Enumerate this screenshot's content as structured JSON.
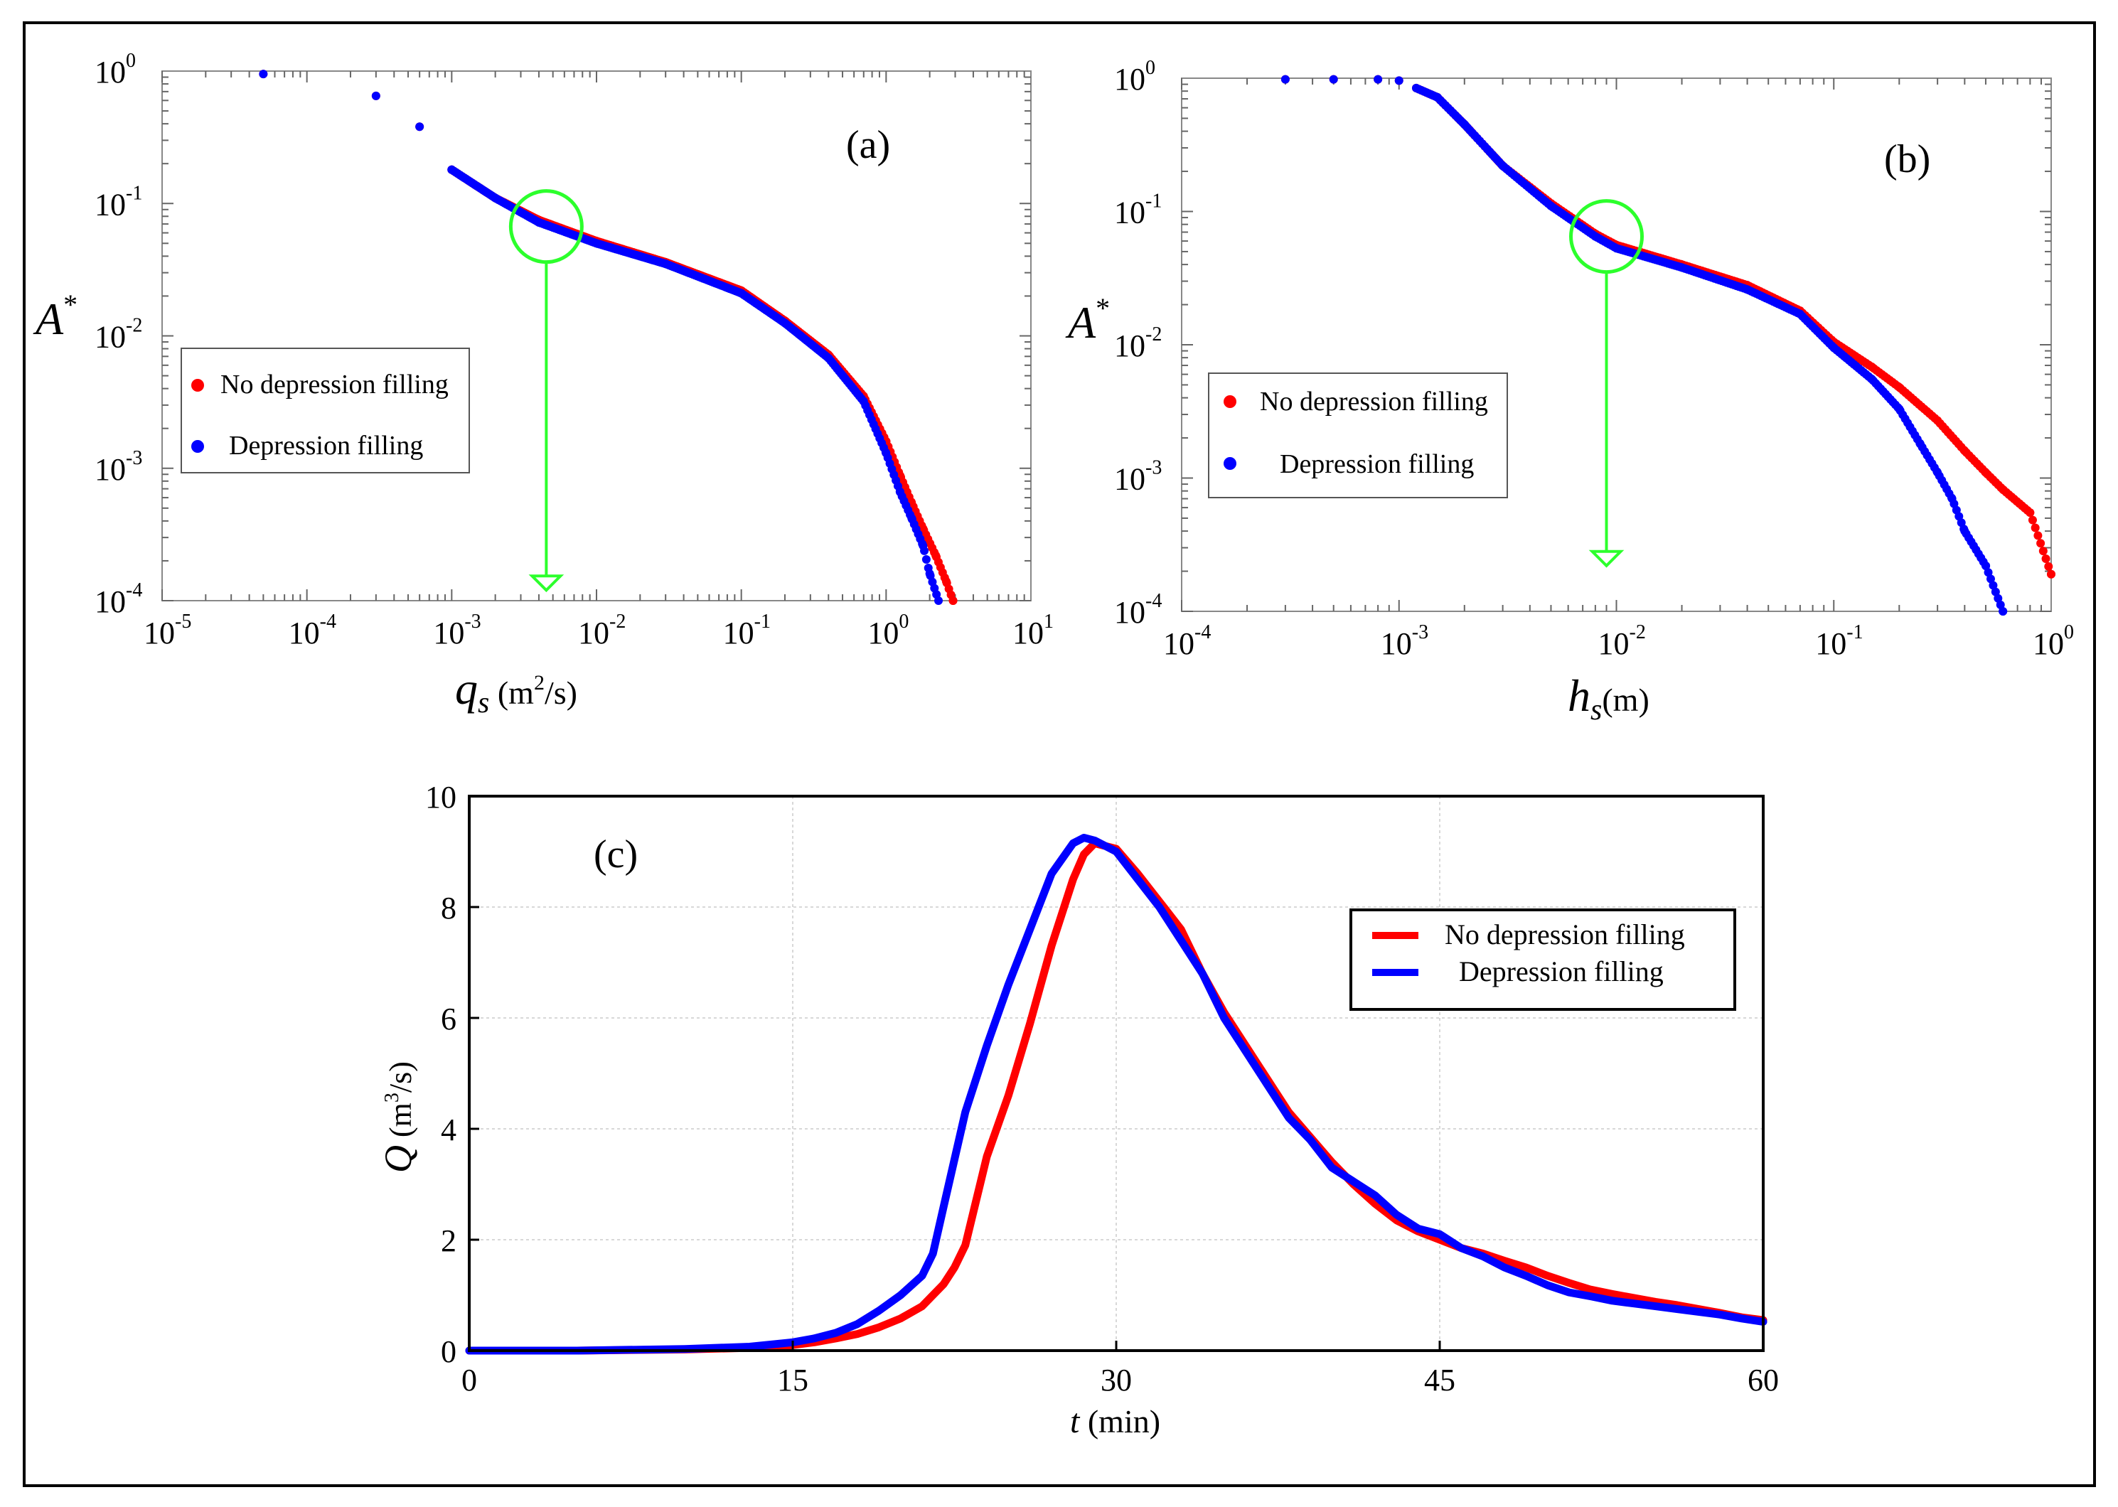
{
  "chart_data": [
    {
      "type": "scatter",
      "panel_label": "(a)",
      "xscale": "log",
      "yscale": "log",
      "xlim": [
        1e-05,
        10
      ],
      "ylim": [
        0.0001,
        1
      ],
      "x_ticks": [
        {
          "base": "10",
          "exp": "-5",
          "value": 1e-05
        },
        {
          "base": "10",
          "exp": "-4",
          "value": 0.0001
        },
        {
          "base": "10",
          "exp": "-3",
          "value": 0.001
        },
        {
          "base": "10",
          "exp": "-2",
          "value": 0.01
        },
        {
          "base": "10",
          "exp": "-1",
          "value": 0.1
        },
        {
          "base": "10",
          "exp": "0",
          "value": 1
        },
        {
          "base": "10",
          "exp": "1",
          "value": 10
        }
      ],
      "y_ticks": [
        {
          "base": "10",
          "exp": "0",
          "value": 1
        },
        {
          "base": "10",
          "exp": "-1",
          "value": 0.1
        },
        {
          "base": "10",
          "exp": "-2",
          "value": 0.01
        },
        {
          "base": "10",
          "exp": "-3",
          "value": 0.001
        },
        {
          "base": "10",
          "exp": "-4",
          "value": 0.0001
        }
      ],
      "xlabel": {
        "symbol": "q",
        "sub": "s",
        "unit_pre": " (m",
        "unit_sup": "2",
        "unit_post": "/s)"
      },
      "ylabel": {
        "symbol": "A",
        "sup": "*"
      },
      "legend": {
        "position": "left-middle",
        "entries": [
          "No depression filling",
          "Depression filling"
        ]
      },
      "annotation": {
        "circle_at": [
          0.0045,
          0.067
        ],
        "arrow_to": [
          0.0045,
          0.00012
        ]
      },
      "series": [
        {
          "name": "No depression filling",
          "color": "#ff0000",
          "points": [
            [
              5e-05,
              0.95
            ],
            [
              0.0003,
              0.65
            ],
            [
              0.0006,
              0.38
            ],
            [
              0.001,
              0.18
            ],
            [
              0.002,
              0.11
            ],
            [
              0.004,
              0.075
            ],
            [
              0.01,
              0.052
            ],
            [
              0.03,
              0.036
            ],
            [
              0.1,
              0.022
            ],
            [
              0.2,
              0.013
            ],
            [
              0.4,
              0.0072
            ],
            [
              0.7,
              0.0035
            ],
            [
              1,
              0.0016
            ],
            [
              1.25,
              0.00088
            ],
            [
              1.5,
              0.00055
            ],
            [
              1.8,
              0.00035
            ],
            [
              2.2,
              0.00022
            ],
            [
              2.6,
              0.00014
            ],
            [
              2.9,
              0.0001
            ]
          ]
        },
        {
          "name": "Depression filling",
          "color": "#0000ff",
          "points": [
            [
              5e-05,
              0.95
            ],
            [
              0.0003,
              0.65
            ],
            [
              0.0006,
              0.38
            ],
            [
              0.001,
              0.18
            ],
            [
              0.002,
              0.11
            ],
            [
              0.004,
              0.072
            ],
            [
              0.01,
              0.05
            ],
            [
              0.03,
              0.035
            ],
            [
              0.1,
              0.021
            ],
            [
              0.2,
              0.0125
            ],
            [
              0.4,
              0.0068
            ],
            [
              0.7,
              0.0032
            ],
            [
              1,
              0.0013
            ],
            [
              1.25,
              0.00066
            ],
            [
              1.5,
              0.00042
            ],
            [
              1.8,
              0.00026
            ],
            [
              2.0,
              0.00016
            ],
            [
              2.3,
              0.0001
            ]
          ]
        }
      ]
    },
    {
      "type": "scatter",
      "panel_label": "(b)",
      "xscale": "log",
      "yscale": "log",
      "xlim": [
        0.0001,
        1
      ],
      "ylim": [
        0.0001,
        1
      ],
      "x_ticks": [
        {
          "base": "10",
          "exp": "-4",
          "value": 0.0001
        },
        {
          "base": "10",
          "exp": "-3",
          "value": 0.001
        },
        {
          "base": "10",
          "exp": "-2",
          "value": 0.01
        },
        {
          "base": "10",
          "exp": "-1",
          "value": 0.1
        },
        {
          "base": "10",
          "exp": "0",
          "value": 1
        }
      ],
      "y_ticks": [
        {
          "base": "10",
          "exp": "0",
          "value": 1
        },
        {
          "base": "10",
          "exp": "-1",
          "value": 0.1
        },
        {
          "base": "10",
          "exp": "-2",
          "value": 0.01
        },
        {
          "base": "10",
          "exp": "-3",
          "value": 0.001
        },
        {
          "base": "10",
          "exp": "-4",
          "value": 0.0001
        }
      ],
      "xlabel": {
        "symbol": "h",
        "sub": "s",
        "unit_pre": "(m)",
        "unit_sup": "",
        "unit_post": ""
      },
      "ylabel": {
        "symbol": "A",
        "sup": "*"
      },
      "legend": {
        "position": "left-middle",
        "entries": [
          "No depression filling",
          "Depression filling"
        ]
      },
      "annotation": {
        "circle_at": [
          0.009,
          0.065
        ],
        "arrow_to": [
          0.009,
          0.00022
        ]
      },
      "series": [
        {
          "name": "No depression filling",
          "color": "#ff0000",
          "points": [
            [
              0.0003,
              0.98
            ],
            [
              0.0005,
              0.98
            ],
            [
              0.0008,
              0.98
            ],
            [
              0.001,
              0.96
            ],
            [
              0.0015,
              0.72
            ],
            [
              0.002,
              0.45
            ],
            [
              0.003,
              0.22
            ],
            [
              0.005,
              0.115
            ],
            [
              0.008,
              0.068
            ],
            [
              0.01,
              0.056
            ],
            [
              0.02,
              0.04
            ],
            [
              0.04,
              0.028
            ],
            [
              0.07,
              0.018
            ],
            [
              0.1,
              0.0105
            ],
            [
              0.15,
              0.0068
            ],
            [
              0.2,
              0.0048
            ],
            [
              0.3,
              0.0027
            ],
            [
              0.4,
              0.0016
            ],
            [
              0.5,
              0.0011
            ],
            [
              0.6,
              0.00082
            ],
            [
              0.8,
              0.00055
            ],
            [
              1,
              0.00019
            ]
          ]
        },
        {
          "name": "Depression filling",
          "color": "#0000ff",
          "points": [
            [
              0.0003,
              0.98
            ],
            [
              0.0005,
              0.98
            ],
            [
              0.0008,
              0.98
            ],
            [
              0.001,
              0.96
            ],
            [
              0.0015,
              0.72
            ],
            [
              0.002,
              0.45
            ],
            [
              0.003,
              0.22
            ],
            [
              0.005,
              0.11
            ],
            [
              0.008,
              0.065
            ],
            [
              0.01,
              0.053
            ],
            [
              0.02,
              0.038
            ],
            [
              0.04,
              0.026
            ],
            [
              0.07,
              0.017
            ],
            [
              0.1,
              0.0095
            ],
            [
              0.15,
              0.0055
            ],
            [
              0.2,
              0.0033
            ],
            [
              0.25,
              0.0018
            ],
            [
              0.3,
              0.0011
            ],
            [
              0.35,
              0.0007
            ],
            [
              0.4,
              0.0004
            ],
            [
              0.5,
              0.00022
            ],
            [
              0.6,
              0.0001
            ]
          ]
        }
      ]
    },
    {
      "type": "line",
      "panel_label": "(c)",
      "xlim": [
        0,
        60
      ],
      "ylim": [
        0,
        10
      ],
      "x_ticks": [
        "0",
        "15",
        "30",
        "45",
        "60"
      ],
      "y_ticks": [
        "0",
        "2",
        "4",
        "6",
        "8",
        "10"
      ],
      "grid": true,
      "xlabel": {
        "symbol": "t",
        "unit": " (min)"
      },
      "ylabel": {
        "symbol": "Q",
        "unit_pre": " (m",
        "unit_sup": "3",
        "unit_post": "/s)"
      },
      "legend": {
        "position": "top-right",
        "entries": [
          "No depression filling",
          "Depression filling"
        ]
      },
      "series": [
        {
          "name": "No depression filling",
          "color": "#ff0000",
          "x": [
            0,
            5,
            10,
            13,
            15,
            16,
            17,
            18,
            19,
            20,
            21,
            22,
            22.5,
            23,
            24,
            25,
            26,
            27,
            28,
            28.5,
            29,
            30,
            31,
            32,
            33,
            34,
            35,
            36,
            37,
            38,
            39,
            40,
            41,
            42,
            43,
            44,
            45,
            46,
            47,
            48,
            49,
            50,
            51,
            52,
            53,
            54,
            55,
            56,
            57,
            58,
            59,
            60
          ],
          "y": [
            0,
            0,
            0.02,
            0.05,
            0.1,
            0.15,
            0.22,
            0.3,
            0.42,
            0.58,
            0.8,
            1.2,
            1.5,
            1.9,
            3.5,
            4.6,
            5.9,
            7.3,
            8.5,
            8.95,
            9.15,
            9.05,
            8.6,
            8.1,
            7.6,
            6.8,
            6.1,
            5.5,
            4.9,
            4.3,
            3.85,
            3.4,
            3.0,
            2.65,
            2.35,
            2.15,
            2.0,
            1.85,
            1.75,
            1.62,
            1.5,
            1.35,
            1.22,
            1.1,
            1.02,
            0.95,
            0.88,
            0.82,
            0.75,
            0.68,
            0.6,
            0.55
          ]
        },
        {
          "name": "Depression filling",
          "color": "#0000ff",
          "x": [
            0,
            5,
            10,
            13,
            15,
            16,
            17,
            18,
            19,
            20,
            21,
            21.5,
            22,
            23,
            24,
            25,
            26,
            27,
            28,
            28.5,
            29,
            30,
            31,
            32,
            33,
            34,
            35,
            36,
            37,
            38,
            39,
            40,
            41,
            42,
            43,
            44,
            45,
            46,
            47,
            48,
            49,
            50,
            51,
            52,
            53,
            54,
            55,
            56,
            57,
            58,
            59,
            60
          ],
          "y": [
            0,
            0,
            0.03,
            0.07,
            0.15,
            0.22,
            0.32,
            0.48,
            0.72,
            1.0,
            1.35,
            1.75,
            2.6,
            4.3,
            5.5,
            6.6,
            7.6,
            8.6,
            9.15,
            9.25,
            9.2,
            9.0,
            8.5,
            8.0,
            7.4,
            6.8,
            6.0,
            5.4,
            4.8,
            4.2,
            3.8,
            3.3,
            3.05,
            2.8,
            2.45,
            2.2,
            2.1,
            1.85,
            1.7,
            1.5,
            1.35,
            1.18,
            1.05,
            0.98,
            0.9,
            0.85,
            0.8,
            0.75,
            0.7,
            0.65,
            0.58,
            0.52
          ]
        }
      ]
    }
  ]
}
